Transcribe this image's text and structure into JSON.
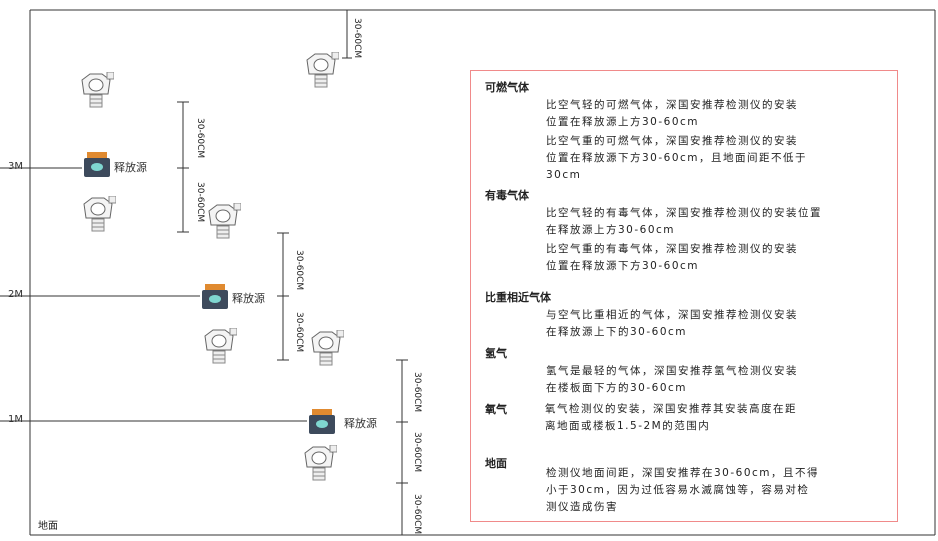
{
  "levels": {
    "m3": "3M",
    "m2": "2M",
    "m1": "1M",
    "ground": "地面"
  },
  "release_source_label": "释放源",
  "dimension_label": "30-60CM",
  "colors": {
    "panel_border": "#f08a8a",
    "line": "#333333",
    "source_body": "#3d4a5c",
    "source_top": "#e08a30"
  },
  "panel": {
    "sections": [
      {
        "title": "可燃气体",
        "paragraphs": [
          [
            "比空气轻的可燃气体，深国安推荐检测仪的安装",
            "位置在释放源上方30-60cm"
          ],
          [
            "比空气重的可燃气体，深国安推荐检测仪的安装",
            "位置在释放源下方30-60cm，且地面间距不低于",
            "30cm"
          ]
        ]
      },
      {
        "title": "有毒气体",
        "paragraphs": [
          [
            "比空气轻的有毒气体，深国安推荐检测仪的安装位置",
            "在释放源上方30-60cm"
          ],
          [
            "比空气重的有毒气体，深国安推荐检测仪的安装",
            "位置在释放源下方30-60cm"
          ]
        ]
      },
      {
        "title": "比重相近气体",
        "paragraphs": [
          [
            "与空气比重相近的气体，深国安推荐检测仪安装",
            "在释放源上下的30-60cm"
          ]
        ]
      },
      {
        "title": "氢气",
        "paragraphs": [
          [
            "氢气是最轻的气体，深国安推荐氢气检测仪安装",
            "在楼板面下方的30-60cm"
          ]
        ]
      },
      {
        "title": "氧气",
        "paragraphs": [
          [
            "氧气检测仪的安装，深国安推荐其安装高度在距",
            "离地面或楼板1.5-2M的范围内"
          ]
        ]
      },
      {
        "title": "地面",
        "paragraphs": [
          [
            "检测仪地面间距，深国安推荐在30-60cm，且不得",
            "小于30cm，因为过低容易水滅腐蚀等，容易对检",
            "测仪造成伤害"
          ]
        ]
      }
    ]
  }
}
